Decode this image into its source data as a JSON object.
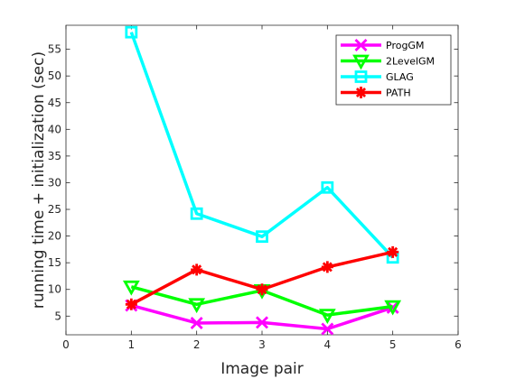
{
  "chart_data": {
    "type": "line",
    "xlabel": "Image pair",
    "ylabel": "running time + initialization (sec)",
    "xlim": [
      0,
      6
    ],
    "ylim": [
      1.5,
      59.5
    ],
    "xticks": [
      0,
      1,
      2,
      3,
      4,
      5,
      6
    ],
    "yticks": [
      5,
      10,
      15,
      20,
      25,
      30,
      35,
      40,
      45,
      50,
      55
    ],
    "grid": false,
    "legend_position": "top-right",
    "x": [
      1,
      2,
      3,
      4,
      5
    ],
    "series": [
      {
        "name": "ProgGM",
        "color": "#ff00ff",
        "marker": "x",
        "values": [
          7.0,
          3.7,
          3.8,
          2.6,
          6.6
        ]
      },
      {
        "name": "2LevelGM",
        "color": "#00ff00",
        "marker": "triangle-down",
        "values": [
          10.5,
          7.2,
          9.8,
          5.2,
          6.8
        ]
      },
      {
        "name": "GLAG",
        "color": "#00ffff",
        "marker": "square",
        "values": [
          58.2,
          24.2,
          19.9,
          29.1,
          16.0
        ]
      },
      {
        "name": "PATH",
        "color": "#ff0000",
        "marker": "asterisk",
        "values": [
          7.2,
          13.7,
          10.0,
          14.2,
          17.0
        ]
      }
    ]
  }
}
